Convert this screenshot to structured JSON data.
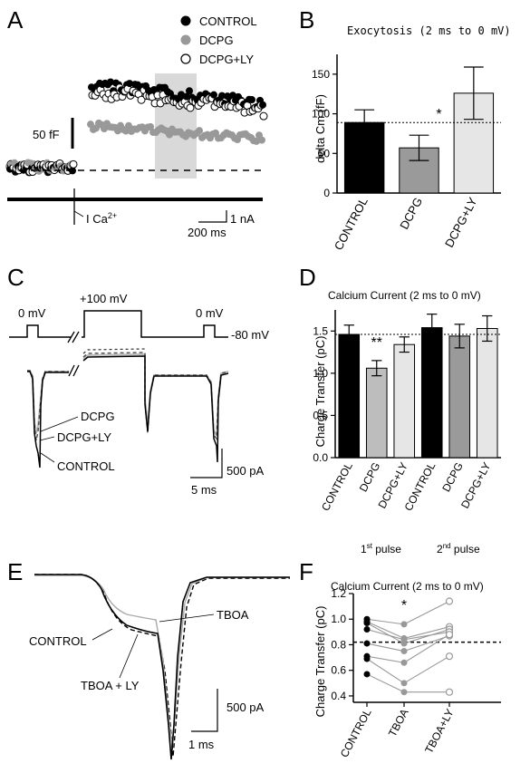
{
  "chart_data": [
    {
      "panel": "A",
      "type": "scatter",
      "legend": {
        "placement": "top-right",
        "entries": [
          {
            "name": "CONTROL",
            "color": "#000000",
            "marker": "filled"
          },
          {
            "name": "DCPG",
            "color": "#999999",
            "marker": "filled"
          },
          {
            "name": "DCPG+LY",
            "color": "#000000",
            "marker": "open"
          }
        ]
      },
      "scalebar_y": "50 fF",
      "scalebar_current": "1 nA",
      "scalebar_time": "200 ms",
      "current_label": "I Ca",
      "current_label_sup": "2+"
    },
    {
      "panel": "B",
      "type": "bar",
      "title": "Exocytosis (2 ms to 0 mV)",
      "ylabel": "delta Cm (fF)",
      "categories": [
        "CONTROL",
        "DCPG",
        "DCPG+LY"
      ],
      "values": [
        89,
        57,
        126
      ],
      "errors": [
        16,
        16,
        33
      ],
      "colors": [
        "#000000",
        "#9a9a9a",
        "#e6e6e6"
      ],
      "ylim": [
        0,
        175
      ],
      "yticks": [
        "0",
        "50",
        "100",
        "150"
      ],
      "reference_line": 89,
      "annotation": "*"
    },
    {
      "panel": "C",
      "type": "line",
      "protocol_labels": [
        "0 mV",
        "+100 mV",
        "0 mV",
        "-80 mV"
      ],
      "trace_labels": [
        "DCPG",
        "DCPG+LY",
        "CONTROL"
      ],
      "scalebar_current": "500 pA",
      "scalebar_time": "5 ms"
    },
    {
      "panel": "D",
      "type": "bar",
      "title": "Calcium Current (2 ms to 0 mV)",
      "ylabel": "Charge Transfer (pC)",
      "categories": [
        "CONTROL",
        "DCPG",
        "DCPG+LY",
        "CONTROL",
        "DCPG",
        "DCPG+LY"
      ],
      "values": [
        1.46,
        1.06,
        1.34,
        1.54,
        1.44,
        1.53
      ],
      "errors": [
        0.11,
        0.09,
        0.09,
        0.16,
        0.14,
        0.15
      ],
      "colors": [
        "#000000",
        "#bdbdbd",
        "#e6e6e6",
        "#000000",
        "#9a9a9a",
        "#e6e6e6"
      ],
      "ylim": [
        0,
        1.75
      ],
      "yticks": [
        "0.0",
        "0.5",
        "1.0",
        "1.5"
      ],
      "reference_line": 1.46,
      "annotation": "**",
      "groups": [
        {
          "label": "1",
          "sup": "st",
          "suffix": " pulse"
        },
        {
          "label": "2",
          "sup": "nd",
          "suffix": " pulse"
        }
      ]
    },
    {
      "panel": "E",
      "type": "line",
      "trace_labels": [
        "CONTROL",
        "TBOA",
        "TBOA + LY"
      ],
      "scalebar_current": "500 pA",
      "scalebar_time": "1 ms"
    },
    {
      "panel": "F",
      "type": "scatter",
      "title": "Calcium Current (2 ms to 0 mV)",
      "ylabel": "Charge Transfer (pC)",
      "categories": [
        "CONTROL",
        "TBOA",
        "TBOA+LY"
      ],
      "ylim": [
        0.35,
        1.2
      ],
      "yticks": [
        "0.4",
        "0.6",
        "0.8",
        "1.0",
        "1.2"
      ],
      "reference_line": 0.82,
      "annotation": "*",
      "series": [
        {
          "values": [
            1.0,
            0.96,
            1.14
          ]
        },
        {
          "values": [
            0.98,
            0.85,
            0.94
          ]
        },
        {
          "values": [
            0.97,
            0.81,
            0.92
          ]
        },
        {
          "values": [
            0.92,
            0.84,
            0.9
          ]
        },
        {
          "values": [
            0.81,
            0.75,
            0.87
          ]
        },
        {
          "values": [
            0.71,
            0.66,
            0.88
          ]
        },
        {
          "values": [
            0.69,
            0.5,
            0.71
          ]
        },
        {
          "values": [
            0.57,
            0.43,
            0.43
          ]
        }
      ]
    }
  ],
  "panel_letters": [
    "A",
    "B",
    "C",
    "D",
    "E",
    "F"
  ]
}
